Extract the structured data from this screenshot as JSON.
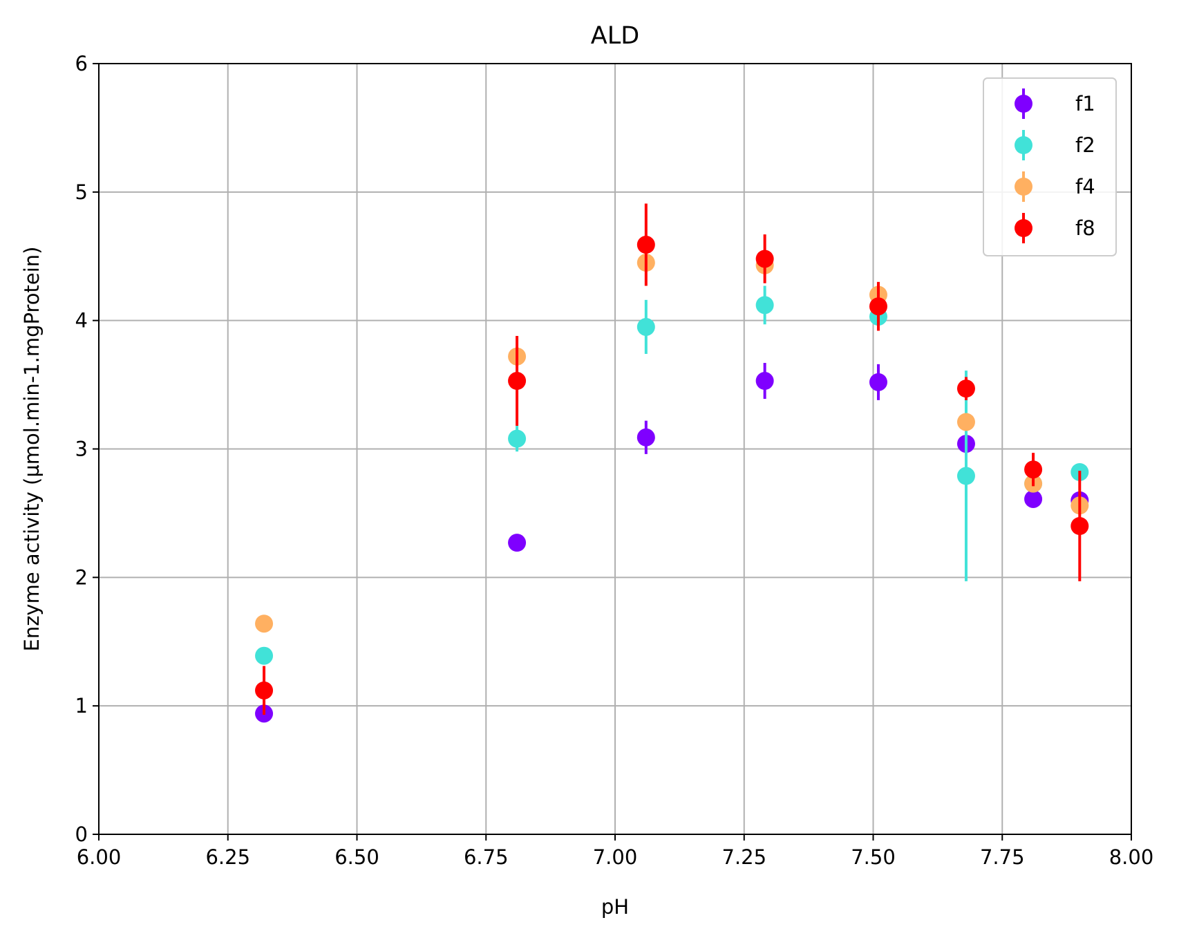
{
  "chart_data": {
    "type": "scatter",
    "title": "ALD",
    "xlabel": "pH",
    "ylabel": "Enzyme activity (µmol.min-1.mgProtein)",
    "xlim": [
      6.0,
      8.0
    ],
    "ylim": [
      0,
      6
    ],
    "xticks": [
      "6.00",
      "6.25",
      "6.50",
      "6.75",
      "7.00",
      "7.25",
      "7.50",
      "7.75",
      "8.00"
    ],
    "yticks": [
      "0",
      "1",
      "2",
      "3",
      "4",
      "5",
      "6"
    ],
    "grid": true,
    "legend_position": "top-right",
    "error_bars": true,
    "series": [
      {
        "name": "f1",
        "color": "#7f00ff",
        "points": [
          {
            "x": 6.32,
            "y": 0.94,
            "err": 0.03
          },
          {
            "x": 6.81,
            "y": 2.27,
            "err": 0.03
          },
          {
            "x": 7.06,
            "y": 3.09,
            "err": 0.13
          },
          {
            "x": 7.29,
            "y": 3.53,
            "err": 0.14
          },
          {
            "x": 7.51,
            "y": 3.52,
            "err": 0.14
          },
          {
            "x": 7.68,
            "y": 3.04,
            "err": 0.03
          },
          {
            "x": 7.81,
            "y": 2.61,
            "err": 0.03
          },
          {
            "x": 7.9,
            "y": 2.6,
            "err": 0.03
          }
        ]
      },
      {
        "name": "f2",
        "color": "#41e2d8",
        "points": [
          {
            "x": 6.32,
            "y": 1.39,
            "err": 0.03
          },
          {
            "x": 6.81,
            "y": 3.08,
            "err": 0.1
          },
          {
            "x": 7.06,
            "y": 3.95,
            "err": 0.21
          },
          {
            "x": 7.29,
            "y": 4.12,
            "err": 0.15
          },
          {
            "x": 7.51,
            "y": 4.03,
            "err": 0.06
          },
          {
            "x": 7.68,
            "y": 2.79,
            "err": 0.82
          },
          {
            "x": 7.81,
            "y": 2.73,
            "err": 0.03
          },
          {
            "x": 7.9,
            "y": 2.82,
            "err": 0.03
          }
        ]
      },
      {
        "name": "f4",
        "color": "#ffb061",
        "points": [
          {
            "x": 6.32,
            "y": 1.64,
            "err": 0.03
          },
          {
            "x": 6.81,
            "y": 3.72,
            "err": 0.06
          },
          {
            "x": 7.06,
            "y": 4.45,
            "err": 0.03
          },
          {
            "x": 7.29,
            "y": 4.43,
            "err": 0.03
          },
          {
            "x": 7.51,
            "y": 4.2,
            "err": 0.1
          },
          {
            "x": 7.68,
            "y": 3.21,
            "err": 0.03
          },
          {
            "x": 7.81,
            "y": 2.73,
            "err": 0.03
          },
          {
            "x": 7.9,
            "y": 2.56,
            "err": 0.03
          }
        ]
      },
      {
        "name": "f8",
        "color": "#ff0000",
        "points": [
          {
            "x": 6.32,
            "y": 1.12,
            "err": 0.19
          },
          {
            "x": 6.81,
            "y": 3.53,
            "err": 0.35
          },
          {
            "x": 7.06,
            "y": 4.59,
            "err": 0.32
          },
          {
            "x": 7.29,
            "y": 4.48,
            "err": 0.19
          },
          {
            "x": 7.51,
            "y": 4.11,
            "err": 0.19
          },
          {
            "x": 7.68,
            "y": 3.47,
            "err": 0.09
          },
          {
            "x": 7.81,
            "y": 2.84,
            "err": 0.13
          },
          {
            "x": 7.9,
            "y": 2.4,
            "err": 0.43
          }
        ]
      }
    ]
  }
}
